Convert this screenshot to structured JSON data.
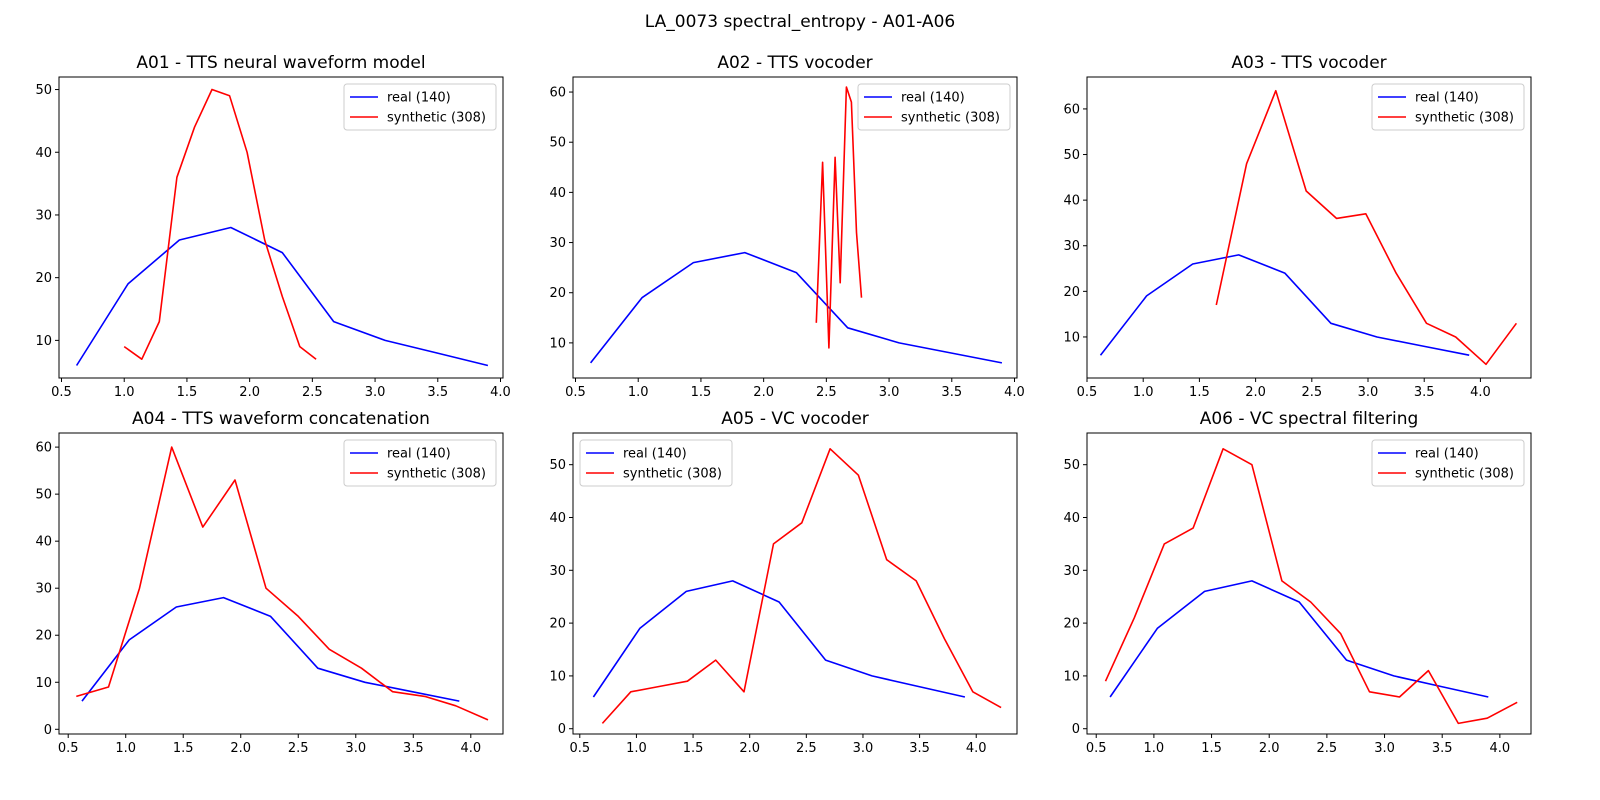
{
  "figure": {
    "title": "LA_0073 spectral_entropy - A01-A06"
  },
  "colors": {
    "real": "#0000ff",
    "synthetic": "#ff0000",
    "axes": "#000000",
    "legend_border": "#cccccc"
  },
  "legend_labels": {
    "real": "real (140)",
    "synthetic": "synthetic (308)"
  },
  "chart_data": [
    {
      "type": "line",
      "title": "A01 - TTS neural waveform model",
      "xlim": [
        0.48,
        4.02
      ],
      "ylim": [
        4.0,
        52.0
      ],
      "xticks": [
        0.5,
        1.0,
        1.5,
        2.0,
        2.5,
        3.0,
        3.5,
        4.0
      ],
      "yticks": [
        10,
        20,
        30,
        40,
        50
      ],
      "legend_position": "top-right",
      "series": [
        {
          "name": "real (140)",
          "color": "#0000ff",
          "x": [
            0.62,
            1.03,
            1.44,
            1.85,
            2.26,
            2.67,
            3.08,
            3.49,
            3.9
          ],
          "y": [
            6,
            19,
            26,
            28,
            24,
            13,
            10,
            8,
            6
          ]
        },
        {
          "name": "synthetic (308)",
          "color": "#ff0000",
          "x": [
            1.0,
            1.14,
            1.28,
            1.42,
            1.56,
            1.7,
            1.84,
            1.98,
            2.12,
            2.26,
            2.4,
            2.53
          ],
          "y": [
            9,
            7,
            13,
            36,
            44,
            50,
            49,
            40,
            26,
            17,
            9,
            7
          ]
        }
      ]
    },
    {
      "type": "line",
      "title": "A02 - TTS vocoder",
      "xlim": [
        0.48,
        4.02
      ],
      "ylim": [
        3.0,
        63.0
      ],
      "xticks": [
        0.5,
        1.0,
        1.5,
        2.0,
        2.5,
        3.0,
        3.5,
        4.0
      ],
      "yticks": [
        10,
        20,
        30,
        40,
        50,
        60
      ],
      "legend_position": "top-right",
      "series": [
        {
          "name": "real (140)",
          "color": "#0000ff",
          "x": [
            0.62,
            1.03,
            1.44,
            1.85,
            2.26,
            2.67,
            3.08,
            3.49,
            3.9
          ],
          "y": [
            6,
            19,
            26,
            28,
            24,
            13,
            10,
            8,
            6
          ]
        },
        {
          "name": "synthetic (308)",
          "color": "#ff0000",
          "x": [
            2.42,
            2.47,
            2.52,
            2.57,
            2.61,
            2.66,
            2.7,
            2.74,
            2.78
          ],
          "y": [
            14,
            46,
            9,
            47,
            22,
            61,
            58,
            32,
            19
          ]
        }
      ]
    },
    {
      "type": "line",
      "title": "A03 - TTS vocoder",
      "xlim": [
        0.5,
        4.45
      ],
      "ylim": [
        1.0,
        67.0
      ],
      "xticks": [
        0.5,
        1.0,
        1.5,
        2.0,
        2.5,
        3.0,
        3.5,
        4.0
      ],
      "yticks": [
        10,
        20,
        30,
        40,
        50,
        60
      ],
      "legend_position": "top-right",
      "series": [
        {
          "name": "real (140)",
          "color": "#0000ff",
          "x": [
            0.62,
            1.03,
            1.44,
            1.85,
            2.26,
            2.67,
            3.08,
            3.49,
            3.9
          ],
          "y": [
            6,
            19,
            26,
            28,
            24,
            13,
            10,
            8,
            6
          ]
        },
        {
          "name": "synthetic (308)",
          "color": "#ff0000",
          "x": [
            1.65,
            1.92,
            2.18,
            2.45,
            2.72,
            2.98,
            3.25,
            3.52,
            3.78,
            4.05,
            4.32
          ],
          "y": [
            17,
            48,
            64,
            42,
            36,
            37,
            24,
            13,
            10,
            4,
            13
          ]
        }
      ]
    },
    {
      "type": "line",
      "title": "A04 - TTS waveform concatenation",
      "xlim": [
        0.42,
        4.28
      ],
      "ylim": [
        -1.0,
        63.0
      ],
      "xticks": [
        0.5,
        1.0,
        1.5,
        2.0,
        2.5,
        3.0,
        3.5,
        4.0
      ],
      "yticks": [
        0,
        10,
        20,
        30,
        40,
        50,
        60
      ],
      "legend_position": "top-right",
      "series": [
        {
          "name": "real (140)",
          "color": "#0000ff",
          "x": [
            0.62,
            1.03,
            1.44,
            1.85,
            2.26,
            2.67,
            3.08,
            3.49,
            3.9
          ],
          "y": [
            6,
            19,
            26,
            28,
            24,
            13,
            10,
            8,
            6
          ]
        },
        {
          "name": "synthetic (308)",
          "color": "#ff0000",
          "x": [
            0.57,
            0.85,
            1.12,
            1.4,
            1.67,
            1.95,
            2.22,
            2.5,
            2.77,
            3.05,
            3.32,
            3.6,
            3.87,
            4.15
          ],
          "y": [
            7,
            9,
            30,
            60,
            43,
            53,
            30,
            24,
            17,
            13,
            8,
            7,
            5,
            2
          ]
        }
      ]
    },
    {
      "type": "line",
      "title": "A05 - VC vocoder",
      "xlim": [
        0.44,
        4.36
      ],
      "ylim": [
        -1.0,
        56.0
      ],
      "xticks": [
        0.5,
        1.0,
        1.5,
        2.0,
        2.5,
        3.0,
        3.5,
        4.0
      ],
      "yticks": [
        0,
        10,
        20,
        30,
        40,
        50
      ],
      "legend_position": "top-left",
      "series": [
        {
          "name": "real (140)",
          "color": "#0000ff",
          "x": [
            0.62,
            1.03,
            1.44,
            1.85,
            2.26,
            2.67,
            3.08,
            3.49,
            3.9
          ],
          "y": [
            6,
            19,
            26,
            28,
            24,
            13,
            10,
            8,
            6
          ]
        },
        {
          "name": "synthetic (308)",
          "color": "#ff0000",
          "x": [
            0.7,
            0.95,
            1.2,
            1.45,
            1.7,
            1.95,
            2.21,
            2.46,
            2.71,
            2.96,
            3.21,
            3.47,
            3.72,
            3.97,
            4.22
          ],
          "y": [
            1,
            7,
            8,
            9,
            13,
            7,
            35,
            39,
            53,
            48,
            32,
            28,
            17,
            7,
            4
          ]
        }
      ]
    },
    {
      "type": "line",
      "title": "A06 - VC spectral filtering",
      "xlim": [
        0.42,
        4.27
      ],
      "ylim": [
        -1.0,
        56.0
      ],
      "xticks": [
        0.5,
        1.0,
        1.5,
        2.0,
        2.5,
        3.0,
        3.5,
        4.0
      ],
      "yticks": [
        0,
        10,
        20,
        30,
        40,
        50
      ],
      "legend_position": "top-right",
      "series": [
        {
          "name": "real (140)",
          "color": "#0000ff",
          "x": [
            0.62,
            1.03,
            1.44,
            1.85,
            2.26,
            2.67,
            3.08,
            3.49,
            3.9
          ],
          "y": [
            6,
            19,
            26,
            28,
            24,
            13,
            10,
            8,
            6
          ]
        },
        {
          "name": "synthetic (308)",
          "color": "#ff0000",
          "x": [
            0.58,
            0.83,
            1.09,
            1.34,
            1.6,
            1.85,
            2.11,
            2.36,
            2.62,
            2.87,
            3.13,
            3.38,
            3.64,
            3.89,
            4.15
          ],
          "y": [
            9,
            21,
            35,
            38,
            53,
            50,
            28,
            24,
            18,
            7,
            6,
            11,
            1,
            2,
            5
          ]
        }
      ]
    }
  ]
}
